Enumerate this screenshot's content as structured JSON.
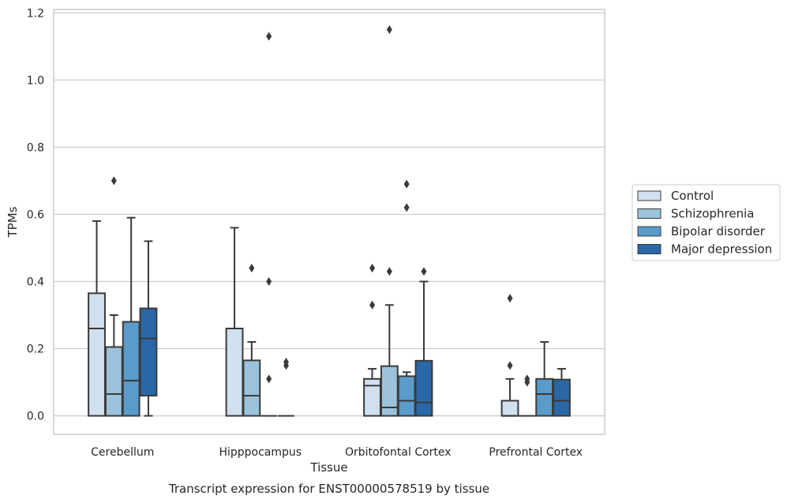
{
  "chart_data": {
    "type": "box",
    "title": "Transcript expression for ENST00000578519 by tissue",
    "xlabel": "Tissue",
    "ylabel": "TPMs",
    "ylim": [
      -0.055,
      1.21
    ],
    "yticks": [
      "0.0",
      "0.2",
      "0.4",
      "0.6",
      "0.8",
      "1.0",
      "1.2"
    ],
    "grid": true,
    "legend_position": "right",
    "categories": [
      "Cerebellum",
      "Hipppocampus",
      "Orbitofontal Cortex",
      "Prefrontal Cortex"
    ],
    "series": [
      {
        "name": "Control",
        "color": "#d0e0ef",
        "boxes": [
          {
            "whislo": 0.0,
            "q1": 0.0,
            "med": 0.26,
            "q3": 0.365,
            "whishi": 0.58,
            "fliers": []
          },
          {
            "whislo": 0.0,
            "q1": 0.0,
            "med": 0.26,
            "q3": 0.26,
            "whishi": 0.56,
            "fliers": []
          },
          {
            "whislo": 0.0,
            "q1": 0.0,
            "med": 0.09,
            "q3": 0.11,
            "whishi": 0.14,
            "fliers": [
              0.33,
              0.44
            ]
          },
          {
            "whislo": 0.0,
            "q1": 0.0,
            "med": 0.0,
            "q3": 0.045,
            "whishi": 0.11,
            "fliers": [
              0.15,
              0.35
            ]
          }
        ]
      },
      {
        "name": "Schizophrenia",
        "color": "#9bc3db",
        "boxes": [
          {
            "whislo": 0.0,
            "q1": 0.0,
            "med": 0.065,
            "q3": 0.205,
            "whishi": 0.3,
            "fliers": [
              0.7
            ]
          },
          {
            "whislo": 0.0,
            "q1": 0.0,
            "med": 0.06,
            "q3": 0.165,
            "whishi": 0.22,
            "fliers": [
              0.44
            ]
          },
          {
            "whislo": 0.0,
            "q1": 0.0,
            "med": 0.025,
            "q3": 0.148,
            "whishi": 0.33,
            "fliers": [
              0.43,
              1.15
            ]
          },
          {
            "whislo": 0.0,
            "q1": 0.0,
            "med": 0.0,
            "q3": 0.0,
            "whishi": 0.0,
            "fliers": [
              0.1,
              0.11
            ]
          }
        ]
      },
      {
        "name": "Bipolar disorder",
        "color": "#5a9bc9",
        "boxes": [
          {
            "whislo": 0.0,
            "q1": 0.0,
            "med": 0.105,
            "q3": 0.28,
            "whishi": 0.59,
            "fliers": []
          },
          {
            "whislo": 0.0,
            "q1": 0.0,
            "med": 0.0,
            "q3": 0.0,
            "whishi": 0.0,
            "fliers": [
              0.11,
              0.4,
              1.13
            ]
          },
          {
            "whislo": 0.0,
            "q1": 0.0,
            "med": 0.045,
            "q3": 0.118,
            "whishi": 0.13,
            "fliers": [
              0.62,
              0.69
            ]
          },
          {
            "whislo": 0.0,
            "q1": 0.0,
            "med": 0.065,
            "q3": 0.11,
            "whishi": 0.22,
            "fliers": []
          }
        ]
      },
      {
        "name": "Major depression",
        "color": "#2a67a6",
        "boxes": [
          {
            "whislo": 0.0,
            "q1": 0.06,
            "med": 0.23,
            "q3": 0.32,
            "whishi": 0.52,
            "fliers": []
          },
          {
            "whislo": 0.0,
            "q1": 0.0,
            "med": 0.0,
            "q3": 0.0,
            "whishi": 0.0,
            "fliers": [
              0.15,
              0.16
            ]
          },
          {
            "whislo": 0.0,
            "q1": 0.0,
            "med": 0.04,
            "q3": 0.164,
            "whishi": 0.4,
            "fliers": [
              0.43
            ]
          },
          {
            "whislo": 0.0,
            "q1": 0.0,
            "med": 0.045,
            "q3": 0.108,
            "whishi": 0.14,
            "fliers": []
          }
        ]
      }
    ]
  }
}
